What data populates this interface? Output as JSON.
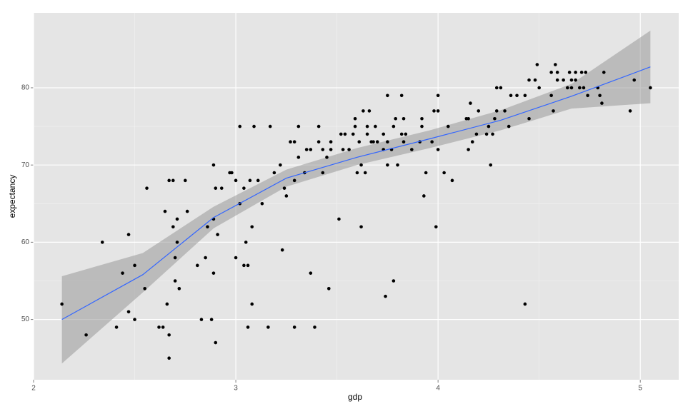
{
  "chart_data": {
    "type": "scatter",
    "xlabel": "gdp",
    "ylabel": "expectancy",
    "xlim": [
      2,
      5.19
    ],
    "ylim": [
      42.2,
      89.7
    ],
    "xticks": [
      2,
      3,
      4,
      5
    ],
    "yticks": [
      50,
      60,
      70,
      80
    ],
    "grid": true,
    "color": "#000000",
    "x": [
      2.14,
      2.26,
      2.34,
      2.41,
      2.44,
      2.47,
      2.47,
      2.5,
      2.5,
      2.55,
      2.56,
      2.62,
      2.64,
      2.65,
      2.66,
      2.67,
      2.67,
      2.67,
      2.69,
      2.69,
      2.7,
      2.7,
      2.71,
      2.71,
      2.72,
      2.75,
      2.76,
      2.81,
      2.83,
      2.85,
      2.86,
      2.88,
      2.89,
      2.89,
      2.89,
      2.9,
      2.9,
      2.91,
      2.93,
      2.97,
      2.98,
      3.0,
      3.0,
      3.02,
      3.02,
      3.04,
      3.04,
      3.05,
      3.06,
      3.06,
      3.07,
      3.08,
      3.08,
      3.09,
      3.11,
      3.13,
      3.16,
      3.17,
      3.19,
      3.22,
      3.23,
      3.24,
      3.25,
      3.27,
      3.29,
      3.29,
      3.29,
      3.31,
      3.31,
      3.34,
      3.35,
      3.37,
      3.37,
      3.39,
      3.41,
      3.41,
      3.43,
      3.43,
      3.45,
      3.46,
      3.47,
      3.47,
      3.51,
      3.52,
      3.54,
      3.53,
      3.56,
      3.58,
      3.59,
      3.59,
      3.6,
      3.61,
      3.62,
      3.62,
      3.63,
      3.64,
      3.65,
      3.65,
      3.66,
      3.67,
      3.68,
      3.69,
      3.7,
      3.73,
      3.73,
      3.74,
      3.75,
      3.75,
      3.75,
      3.77,
      3.78,
      3.78,
      3.79,
      3.8,
      3.82,
      3.82,
      3.83,
      3.83,
      3.84,
      3.87,
      3.91,
      3.92,
      3.92,
      3.93,
      3.94,
      3.97,
      3.98,
      3.99,
      4.0,
      4.0,
      4.0,
      4.03,
      4.05,
      4.07,
      4.14,
      4.15,
      4.15,
      4.16,
      4.17,
      4.19,
      4.2,
      4.24,
      4.25,
      4.26,
      4.27,
      4.28,
      4.29,
      4.29,
      4.31,
      4.33,
      4.35,
      4.36,
      4.39,
      4.43,
      4.43,
      4.45,
      4.45,
      4.48,
      4.49,
      4.5,
      4.56,
      4.56,
      4.57,
      4.58,
      4.59,
      4.59,
      4.62,
      4.64,
      4.65,
      4.66,
      4.66,
      4.68,
      4.68,
      4.7,
      4.71,
      4.72,
      4.73,
      4.74,
      4.79,
      4.8,
      4.81,
      4.82,
      4.95,
      4.97,
      5.05
    ],
    "y": [
      52,
      48,
      60,
      49,
      56,
      61,
      51,
      50,
      57,
      54,
      67,
      49,
      49,
      64,
      52,
      68,
      48,
      45,
      62,
      68,
      55,
      58,
      60,
      63,
      54,
      68,
      64,
      57,
      50,
      58,
      62,
      50,
      63,
      70,
      56,
      47,
      67,
      61,
      67,
      69,
      69,
      58,
      68,
      75,
      65,
      57,
      67,
      60,
      49,
      57,
      68,
      62,
      52,
      75,
      68,
      65,
      49,
      75,
      69,
      70,
      59,
      67,
      66,
      73,
      49,
      73,
      68,
      75,
      71,
      69,
      72,
      72,
      56,
      49,
      73,
      75,
      69,
      72,
      71,
      54,
      72,
      73,
      63,
      74,
      74,
      72,
      72,
      74,
      75,
      76,
      69,
      73,
      62,
      70,
      77,
      69,
      75,
      74,
      77,
      73,
      73,
      75,
      73,
      72,
      74,
      53,
      79,
      70,
      73,
      72,
      55,
      75,
      76,
      70,
      74,
      79,
      73,
      76,
      74,
      72,
      73,
      76,
      75,
      66,
      69,
      73,
      77,
      62,
      77,
      72,
      79,
      69,
      75,
      68,
      76,
      72,
      76,
      78,
      73,
      74,
      77,
      74,
      75,
      70,
      74,
      76,
      80,
      77,
      80,
      77,
      75,
      79,
      79,
      79,
      52,
      76,
      81,
      81,
      83,
      80,
      82,
      79,
      77,
      83,
      82,
      81,
      81,
      80,
      82,
      80,
      81,
      82,
      81,
      80,
      82,
      80,
      82,
      79,
      80,
      79,
      78,
      82,
      77,
      81,
      80
    ],
    "smooth": {
      "color": "#3366ff",
      "band_color": "#999999",
      "x": [
        2.14,
        2.54,
        2.89,
        3.25,
        3.6,
        3.96,
        4.31,
        4.66,
        5.05
      ],
      "y": [
        50,
        55.8,
        63.2,
        68.3,
        71,
        73.4,
        75.8,
        78.9,
        82.7
      ],
      "lower": [
        44.3,
        53.5,
        61.8,
        67.2,
        70,
        72.2,
        74.5,
        77.3,
        78
      ],
      "upper": [
        55.6,
        58.6,
        64.6,
        69.4,
        72.2,
        74.5,
        77.1,
        80.5,
        87.4
      ]
    }
  }
}
